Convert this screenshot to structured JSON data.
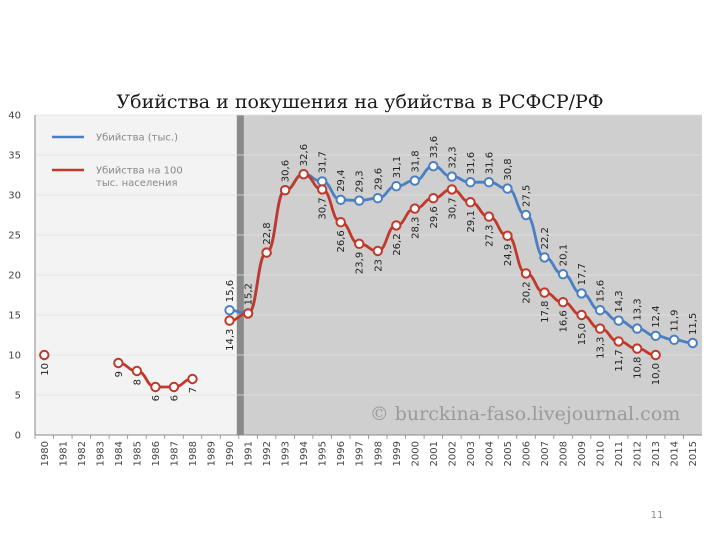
{
  "title": "Убийства и покушения на убийства в РСФСР/РФ",
  "watermark": "© burckina-faso.livejournal.com",
  "page_number": "11",
  "colors": {
    "blue": "#4a7fc1",
    "red": "#c0392b",
    "shaded": "#cfcfcf",
    "divider": "#8a8a8a"
  },
  "chart_data": {
    "type": "line",
    "title": "Убийства и покушения на убийства в РСФСР/РФ",
    "xlabel": "",
    "ylabel": "",
    "ylim": [
      0,
      40
    ],
    "yticks": [
      "0",
      "5",
      "10",
      "15",
      "20",
      "25",
      "30",
      "35",
      "40"
    ],
    "ytick_values": [
      0,
      5,
      10,
      15,
      20,
      25,
      30,
      35,
      40
    ],
    "categories": [
      "1980",
      "1981",
      "1982",
      "1983",
      "1984",
      "1985",
      "1986",
      "1987",
      "1988",
      "1989",
      "1990",
      "1991",
      "1992",
      "1993",
      "1994",
      "1995",
      "1996",
      "1997",
      "1998",
      "1999",
      "2000",
      "2001",
      "2002",
      "2003",
      "2004",
      "2005",
      "2006",
      "2007",
      "2008",
      "2009",
      "2010",
      "2011",
      "2012",
      "2013",
      "2014",
      "2015"
    ],
    "shaded_from": "1991",
    "legend_position": "top-left",
    "series": [
      {
        "name": "Убийства (тыс.)",
        "color": "#4a7fc1",
        "values": [
          null,
          null,
          null,
          null,
          null,
          null,
          null,
          null,
          null,
          null,
          15.6,
          15.2,
          22.8,
          30.6,
          32.6,
          31.7,
          29.4,
          29.3,
          29.6,
          31.1,
          31.8,
          33.6,
          32.3,
          31.6,
          31.6,
          30.8,
          27.5,
          22.2,
          20.1,
          17.7,
          15.6,
          14.3,
          13.3,
          12.4,
          11.9,
          11.5
        ],
        "labels": [
          null,
          null,
          null,
          null,
          null,
          null,
          null,
          null,
          null,
          null,
          "15,6",
          "15,2",
          "22,8",
          "30,6",
          "32,6",
          "31,7",
          "29,4",
          "29,3",
          "29,6",
          "31,1",
          "31,8",
          "33,6",
          "32,3",
          "31,6",
          "31,6",
          "30,8",
          "27,5",
          "22,2",
          "20,1",
          "17,7",
          "15,6",
          "14,3",
          "13,3",
          "12,4",
          "11,9",
          "11,5"
        ]
      },
      {
        "name": "Убийства на 100 тыс. населения",
        "color": "#c0392b",
        "values": [
          10,
          null,
          null,
          null,
          9,
          8,
          6,
          6,
          7,
          null,
          14.3,
          15.2,
          22.8,
          30.6,
          32.6,
          30.7,
          26.6,
          23.9,
          23,
          26.2,
          28.3,
          29.6,
          30.7,
          29.1,
          27.3,
          24.9,
          20.2,
          17.8,
          16.6,
          15,
          13.3,
          11.7,
          10.8,
          10,
          null,
          null
        ],
        "labels": [
          "10",
          null,
          null,
          null,
          "9",
          "8",
          "6",
          "6",
          "7",
          null,
          "14,3",
          null,
          null,
          null,
          null,
          "30,7",
          "26,6",
          "23,9",
          "23",
          "26,2",
          "28,3",
          "29,6",
          "30,7",
          "29,1",
          "27,3",
          "24,9",
          "20,2",
          "17,8",
          "16,6",
          "15,0",
          "13,3",
          "11,7",
          "10,8",
          "10,0",
          null,
          null
        ]
      }
    ]
  }
}
